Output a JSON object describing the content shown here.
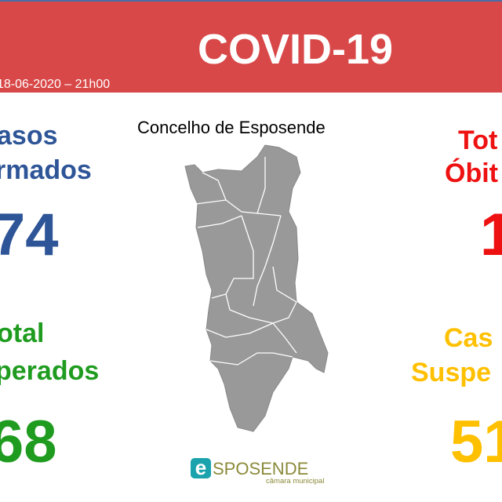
{
  "header": {
    "title": "COVID-19",
    "date": "18-06-2020 – 21h00"
  },
  "map": {
    "title": "Concelho de Esposende",
    "fill": "#999999"
  },
  "stats": {
    "confirmed": {
      "line1": "asos",
      "line2": "rmados",
      "value": "74",
      "color": "#2e5597"
    },
    "recovered": {
      "line1": "otal",
      "line2": "perados",
      "value": "68",
      "color": "#1f9c1f"
    },
    "deaths": {
      "line1": "Tot",
      "line2": "Óbit",
      "value": "1",
      "color": "#ee1111"
    },
    "suspected": {
      "line1": "Cas",
      "line2": "Suspe",
      "value": "51",
      "color": "#ffc000"
    }
  },
  "logo": {
    "name": "ESPOSENDE",
    "subtitle": "câmara municipal"
  }
}
